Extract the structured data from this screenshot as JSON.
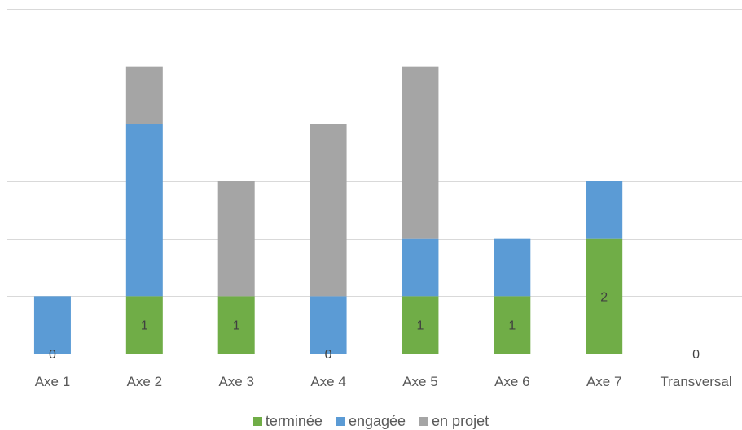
{
  "chart_data": {
    "type": "bar",
    "stacked": true,
    "categories": [
      "Axe 1",
      "Axe 2",
      "Axe 3",
      "Axe 4",
      "Axe 5",
      "Axe 6",
      "Axe 7",
      "Transversal"
    ],
    "series": [
      {
        "name": "terminée",
        "color": "#70ad47",
        "values": [
          0,
          1,
          1,
          0,
          1,
          1,
          2,
          0
        ]
      },
      {
        "name": "engagée",
        "color": "#5b9bd5",
        "values": [
          1,
          3,
          0,
          1,
          1,
          1,
          1,
          0
        ]
      },
      {
        "name": "en projet",
        "color": "#a5a5a5",
        "values": [
          0,
          1,
          2,
          3,
          3,
          0,
          0,
          0
        ]
      }
    ],
    "data_labels": [
      "0",
      "1",
      "1",
      "0",
      "1",
      "1",
      "2",
      "0"
    ],
    "ylim": [
      0,
      6
    ],
    "grid": true,
    "legend_position": "bottom",
    "title": "",
    "xlabel": "",
    "ylabel": ""
  }
}
